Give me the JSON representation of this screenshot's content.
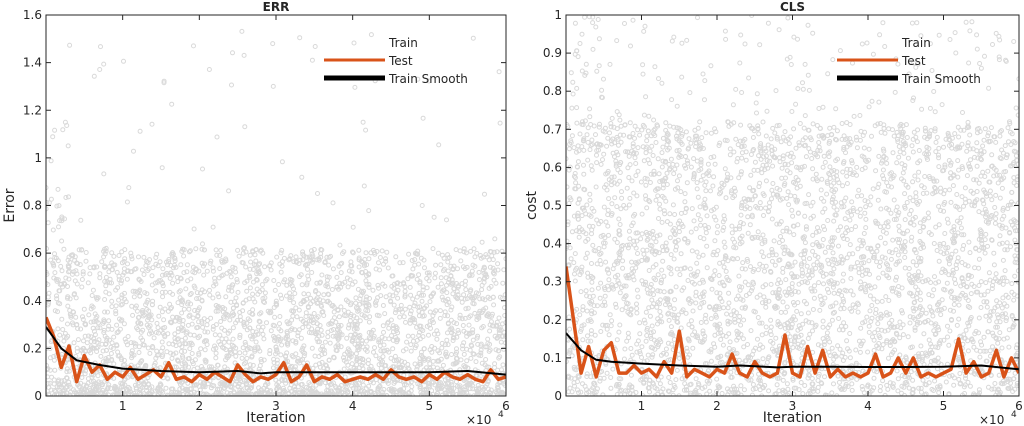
{
  "chart_data": [
    {
      "type": "line",
      "title": "ERR",
      "xlabel": "Iteration",
      "ylabel": "Error",
      "x_exponent_label": "×10",
      "x_exponent": "4",
      "xlim": [
        0,
        6
      ],
      "ylim": [
        0,
        1.6
      ],
      "xticks": [
        "1",
        "2",
        "3",
        "4",
        "5",
        "6"
      ],
      "yticks": [
        "0",
        "0.2",
        "0.4",
        "0.6",
        "0.8",
        "1",
        "1.2",
        "1.4",
        "1.6"
      ],
      "ytick_values": [
        0,
        0.2,
        0.4,
        0.6,
        0.8,
        1,
        1.2,
        1.4,
        1.6
      ],
      "legend_position": "top-right",
      "grid": false,
      "series": [
        {
          "name": "Train",
          "kind": "scatter",
          "color": "#d9d9d9",
          "typical_range": [
            0,
            0.6
          ],
          "max": 1.55
        },
        {
          "name": "Test",
          "kind": "line",
          "color": "#d95319",
          "x": [
            0,
            0.1,
            0.2,
            0.3,
            0.4,
            0.5,
            0.6,
            0.7,
            0.8,
            0.9,
            1,
            1.1,
            1.2,
            1.3,
            1.4,
            1.5,
            1.6,
            1.7,
            1.8,
            1.9,
            2,
            2.1,
            2.2,
            2.3,
            2.4,
            2.5,
            2.6,
            2.7,
            2.8,
            2.9,
            3,
            3.1,
            3.2,
            3.3,
            3.4,
            3.5,
            3.6,
            3.7,
            3.8,
            3.9,
            4,
            4.1,
            4.2,
            4.3,
            4.4,
            4.5,
            4.6,
            4.7,
            4.8,
            4.9,
            5,
            5.1,
            5.2,
            5.3,
            5.4,
            5.5,
            5.6,
            5.7,
            5.8,
            5.9,
            6
          ],
          "y": [
            0.33,
            0.25,
            0.12,
            0.21,
            0.06,
            0.17,
            0.1,
            0.13,
            0.07,
            0.1,
            0.08,
            0.12,
            0.07,
            0.09,
            0.11,
            0.08,
            0.14,
            0.07,
            0.08,
            0.06,
            0.09,
            0.07,
            0.1,
            0.08,
            0.06,
            0.13,
            0.09,
            0.06,
            0.08,
            0.07,
            0.09,
            0.14,
            0.06,
            0.08,
            0.13,
            0.06,
            0.08,
            0.07,
            0.09,
            0.06,
            0.07,
            0.08,
            0.07,
            0.09,
            0.07,
            0.11,
            0.08,
            0.07,
            0.08,
            0.06,
            0.09,
            0.07,
            0.1,
            0.08,
            0.07,
            0.09,
            0.07,
            0.06,
            0.11,
            0.07,
            0.08
          ]
        },
        {
          "name": "Train Smooth",
          "kind": "line",
          "color": "#000000",
          "x": [
            0,
            0.2,
            0.4,
            0.7,
            1,
            1.5,
            2,
            2.5,
            2.8,
            3,
            3.5,
            4,
            4.5,
            5,
            5.5,
            6
          ],
          "y": [
            0.29,
            0.2,
            0.15,
            0.13,
            0.115,
            0.105,
            0.1,
            0.105,
            0.095,
            0.1,
            0.1,
            0.1,
            0.1,
            0.1,
            0.105,
            0.09
          ]
        }
      ]
    },
    {
      "type": "line",
      "title": "CLS",
      "xlabel": "Iteration",
      "ylabel": "cost",
      "x_exponent_label": "×10",
      "x_exponent": "4",
      "xlim": [
        0,
        6
      ],
      "ylim": [
        0,
        1
      ],
      "xticks": [
        "1",
        "2",
        "3",
        "4",
        "5",
        "6"
      ],
      "yticks": [
        "0",
        "0.1",
        "0.2",
        "0.3",
        "0.4",
        "0.5",
        "0.6",
        "0.7",
        "0.8",
        "0.9",
        "1"
      ],
      "ytick_values": [
        0,
        0.1,
        0.2,
        0.3,
        0.4,
        0.5,
        0.6,
        0.7,
        0.8,
        0.9,
        1
      ],
      "legend_position": "top-right",
      "grid": false,
      "series": [
        {
          "name": "Train",
          "kind": "scatter",
          "color": "#d9d9d9",
          "typical_range": [
            0,
            0.7
          ],
          "max": 1.0
        },
        {
          "name": "Test",
          "kind": "line",
          "color": "#d95319",
          "x": [
            0,
            0.1,
            0.2,
            0.3,
            0.4,
            0.5,
            0.6,
            0.7,
            0.8,
            0.9,
            1,
            1.1,
            1.2,
            1.3,
            1.4,
            1.5,
            1.6,
            1.7,
            1.8,
            1.9,
            2,
            2.1,
            2.2,
            2.3,
            2.4,
            2.5,
            2.6,
            2.7,
            2.8,
            2.9,
            3,
            3.1,
            3.2,
            3.3,
            3.4,
            3.5,
            3.6,
            3.7,
            3.8,
            3.9,
            4,
            4.1,
            4.2,
            4.3,
            4.4,
            4.5,
            4.6,
            4.7,
            4.8,
            4.9,
            5,
            5.1,
            5.2,
            5.3,
            5.4,
            5.5,
            5.6,
            5.7,
            5.8,
            5.9,
            6
          ],
          "y": [
            0.34,
            0.2,
            0.06,
            0.13,
            0.05,
            0.12,
            0.14,
            0.06,
            0.06,
            0.08,
            0.06,
            0.07,
            0.05,
            0.09,
            0.06,
            0.17,
            0.05,
            0.07,
            0.06,
            0.05,
            0.07,
            0.06,
            0.11,
            0.06,
            0.05,
            0.09,
            0.06,
            0.05,
            0.06,
            0.16,
            0.06,
            0.05,
            0.13,
            0.06,
            0.12,
            0.05,
            0.07,
            0.05,
            0.06,
            0.05,
            0.06,
            0.11,
            0.05,
            0.06,
            0.1,
            0.06,
            0.1,
            0.05,
            0.06,
            0.05,
            0.06,
            0.07,
            0.15,
            0.06,
            0.09,
            0.05,
            0.06,
            0.12,
            0.05,
            0.1,
            0.06
          ]
        },
        {
          "name": "Train Smooth",
          "kind": "line",
          "color": "#000000",
          "x": [
            0,
            0.2,
            0.4,
            0.6,
            1,
            1.5,
            2,
            2.3,
            2.8,
            3,
            3.5,
            4,
            4.5,
            5,
            5.5,
            6
          ],
          "y": [
            0.165,
            0.12,
            0.095,
            0.09,
            0.085,
            0.08,
            0.077,
            0.08,
            0.075,
            0.077,
            0.077,
            0.076,
            0.076,
            0.077,
            0.08,
            0.07
          ]
        }
      ]
    }
  ]
}
